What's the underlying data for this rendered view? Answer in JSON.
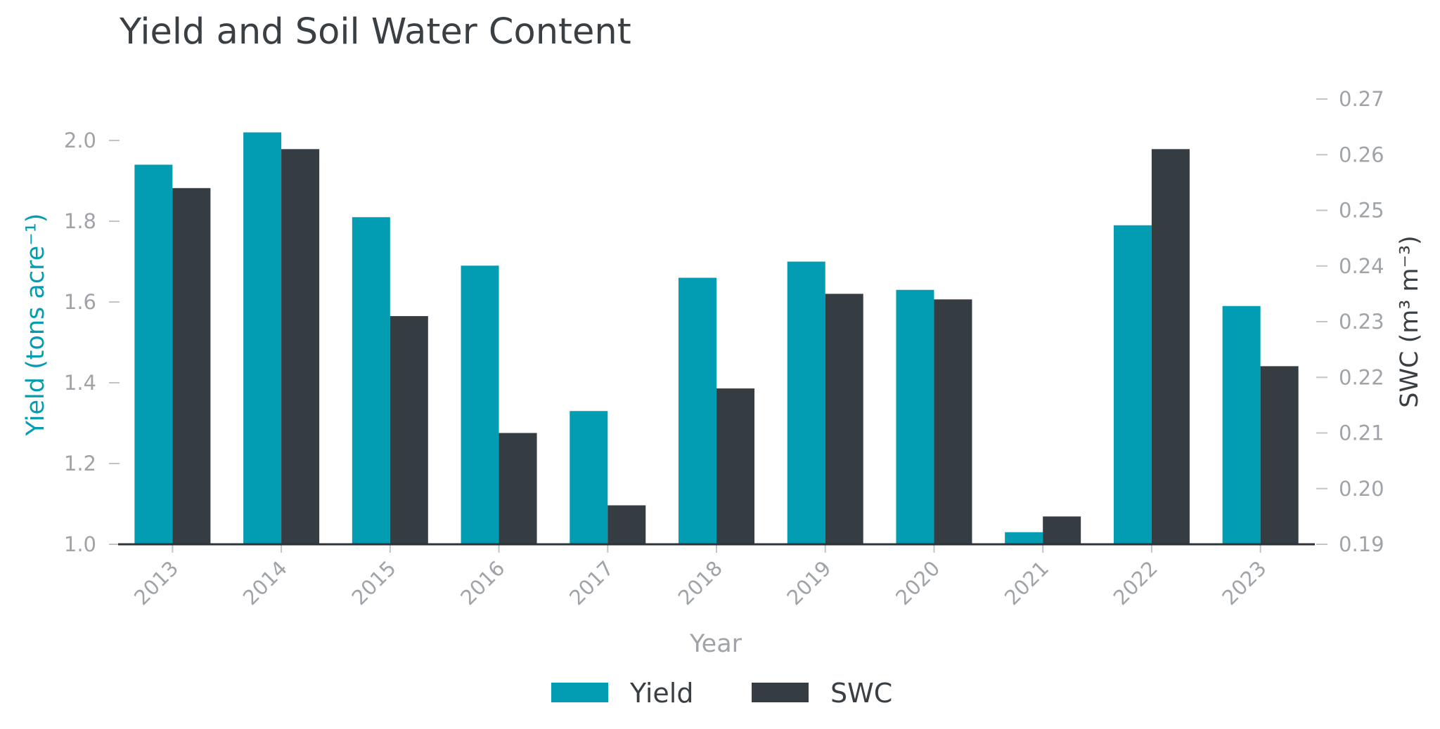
{
  "chart_data": {
    "type": "bar",
    "title": "Yield and Soil Water Content",
    "xlabel": "Year",
    "ylabel": "Yield (tons acre⁻¹)",
    "y2label": "SWC (m³ m⁻³)",
    "categories": [
      "2013",
      "2014",
      "2015",
      "2016",
      "2017",
      "2018",
      "2019",
      "2020",
      "2021",
      "2022",
      "2023"
    ],
    "series": [
      {
        "name": "Yield",
        "axis": "left",
        "color": "#039db3",
        "values": [
          1.94,
          2.02,
          1.81,
          1.69,
          1.33,
          1.66,
          1.7,
          1.63,
          1.03,
          1.79,
          1.59
        ]
      },
      {
        "name": "SWC",
        "axis": "right",
        "color": "#353c42",
        "values": [
          0.254,
          0.261,
          0.231,
          0.21,
          0.197,
          0.218,
          0.235,
          0.234,
          0.195,
          0.261,
          0.222
        ]
      }
    ],
    "ylim": [
      1.0,
      2.1
    ],
    "yticks": [
      "1.0",
      "1.2",
      "1.4",
      "1.6",
      "1.8",
      "2.0"
    ],
    "y2lim": [
      0.19,
      0.27
    ],
    "y2ticks": [
      "0.19",
      "0.20",
      "0.21",
      "0.22",
      "0.23",
      "0.24",
      "0.25",
      "0.26",
      "0.27"
    ],
    "grid": false,
    "legend": "bottom-center"
  }
}
